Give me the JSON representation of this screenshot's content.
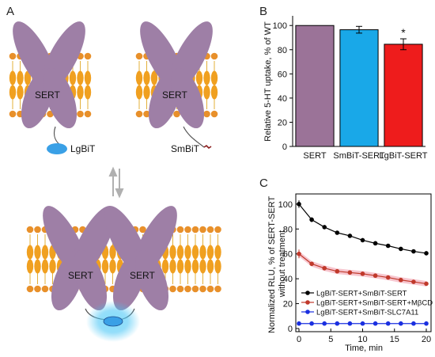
{
  "panels": {
    "a": {
      "label": "A"
    },
    "b": {
      "label": "B"
    },
    "c": {
      "label": "C"
    }
  },
  "schematic": {
    "protein_label": "SERT",
    "large_tag": "LgBiT",
    "small_tag": "SmBiT"
  },
  "colors": {
    "protein": "#9e7fa6",
    "membrane": "#f0a020",
    "head": "#e8902a",
    "lgbit": "#3aa0e6",
    "glow": "#5fd0ff",
    "sert_bar": "#9b7398",
    "smbit_bar": "#19a8e8",
    "lgbit_bar": "#ee1c1c",
    "series_black": "#000000",
    "series_red": "#c0392b",
    "series_blue": "#1a2fe0",
    "ci_red": "#f7c6cf"
  },
  "chart_data": [
    {
      "type": "bar",
      "title": "",
      "xlabel": "",
      "ylabel": "Relative 5-HT uptake, % of WT",
      "categories": [
        "SERT",
        "SmBiT-SERT",
        "LgBiT-SERT"
      ],
      "values": [
        100,
        96.5,
        84.5
      ],
      "errors": [
        0,
        2.8,
        4.5
      ],
      "ylim": [
        0,
        108
      ],
      "yticks": [
        0,
        20,
        40,
        60,
        80,
        100
      ],
      "significance": [
        "",
        "",
        "*"
      ],
      "grid": false
    },
    {
      "type": "line",
      "title": "",
      "xlabel": "Time, min",
      "ylabel": "Normalized RLU, % of SERT-SERT without treatment",
      "xlim": [
        0,
        20
      ],
      "ylim": [
        0,
        105
      ],
      "xticks": [
        0,
        5,
        10,
        15,
        20
      ],
      "yticks": [
        0,
        20,
        40,
        60,
        80,
        100
      ],
      "legend_position": "lower-left",
      "grid": false,
      "series": [
        {
          "name": "LgBiT-SERT+SmBiT-SERT",
          "x": [
            0,
            2,
            4,
            6,
            8,
            10,
            12,
            14,
            16,
            18,
            20
          ],
          "y": [
            100,
            87.5,
            81.5,
            77,
            74.5,
            71,
            68.5,
            66.5,
            64,
            62,
            60.5
          ]
        },
        {
          "name": "LgBiT-SERT+SmBiT-SERT+MβCD",
          "x": [
            0,
            2,
            4,
            6,
            8,
            10,
            12,
            14,
            16,
            18,
            20
          ],
          "y": [
            60,
            52,
            48.5,
            46,
            45,
            44,
            42.5,
            41,
            39,
            37.5,
            36
          ]
        },
        {
          "name": "LgBiT-SERT+SmBiT-SLC7A11",
          "x": [
            0,
            2,
            4,
            6,
            8,
            10,
            12,
            14,
            16,
            18,
            20
          ],
          "y": [
            4,
            4,
            4,
            4,
            4,
            4,
            4,
            4,
            4,
            4,
            4
          ]
        }
      ]
    }
  ]
}
